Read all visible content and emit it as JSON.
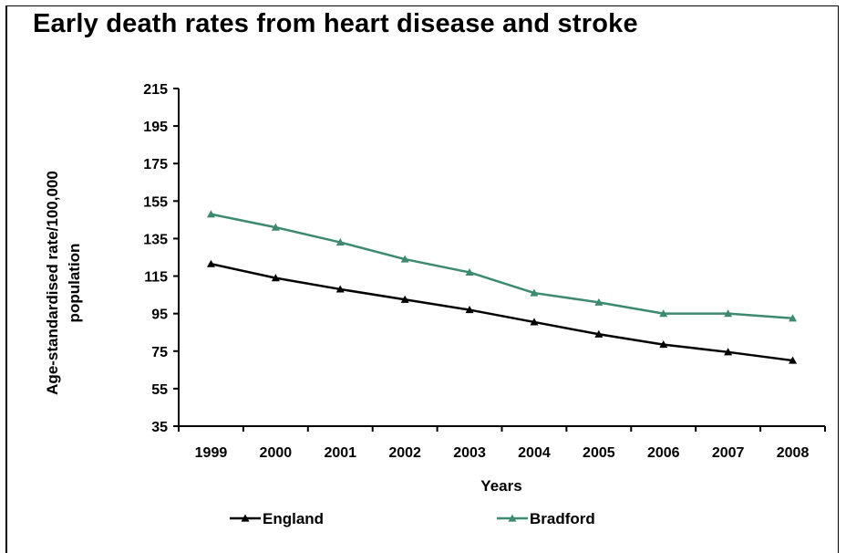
{
  "chart_data": {
    "type": "line",
    "title": "Early death rates from heart disease and stroke",
    "xlabel": "Years",
    "ylabel": "Age-standardised rate/100,000 population",
    "ylabel_lines": [
      "Age-standardised rate/100,000",
      "population"
    ],
    "x": [
      "1999",
      "2000",
      "2001",
      "2002",
      "2003",
      "2004",
      "2005",
      "2006",
      "2007",
      "2008"
    ],
    "ylim": [
      35,
      215
    ],
    "yticks": [
      35,
      55,
      75,
      95,
      115,
      135,
      155,
      175,
      195,
      215
    ],
    "grid": false,
    "legend_position": "bottom",
    "series": [
      {
        "name": "England",
        "color": "#000000",
        "marker": "triangle",
        "values": [
          121.5,
          114,
          108,
          102.5,
          97,
          90.5,
          84,
          78.5,
          74.5,
          70
        ]
      },
      {
        "name": "Bradford",
        "color": "#3d8a70",
        "marker": "triangle",
        "values": [
          148,
          141,
          133,
          124,
          117,
          106,
          101,
          95,
          95,
          92.5
        ]
      }
    ]
  }
}
